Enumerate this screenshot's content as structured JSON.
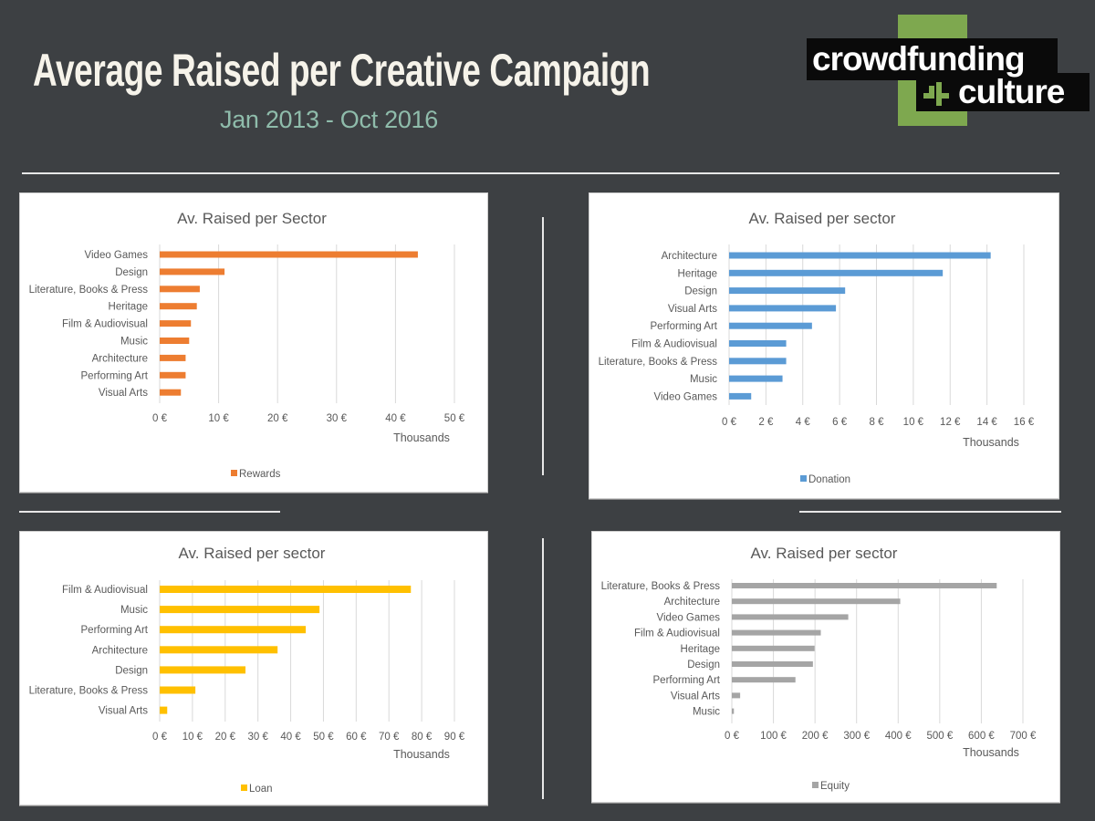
{
  "header": {
    "title": "Average Raised per Creative Campaign",
    "subtitle": "Jan 2013 - Oct 2016"
  },
  "logo": {
    "line1": "crowdfunding",
    "line2": "culture",
    "brand_green": "#7ea84f"
  },
  "chart_data": [
    {
      "type": "bar",
      "orientation": "horizontal",
      "title": "Av. Raised per Sector",
      "xlabel": "Thousands",
      "ylabel": "",
      "legend": "Rewards",
      "legend_position": "bottom",
      "color": "#ed7d31",
      "grid": true,
      "xlim": [
        0,
        50
      ],
      "x_ticks": [
        "0 €",
        "10 €",
        "20 €",
        "30 €",
        "40 €",
        "50 €"
      ],
      "categories": [
        "Video Games",
        "Design",
        "Literature, Books & Press",
        "Heritage",
        "Film & Audiovisual",
        "Music",
        "Architecture",
        "Performing Art",
        "Visual Arts"
      ],
      "values": [
        43.8,
        11.0,
        6.8,
        6.3,
        5.3,
        5.0,
        4.4,
        4.4,
        3.6
      ]
    },
    {
      "type": "bar",
      "orientation": "horizontal",
      "title": "Av. Raised per sector",
      "xlabel": "Thousands",
      "ylabel": "",
      "legend": "Donation",
      "legend_position": "bottom",
      "color": "#5b9bd5",
      "grid": true,
      "xlim": [
        0,
        16
      ],
      "x_ticks": [
        "0 €",
        "2 €",
        "4 €",
        "6 €",
        "8 €",
        "10 €",
        "12 €",
        "14 €",
        "16 €"
      ],
      "categories": [
        "Architecture",
        "Heritage",
        "Design",
        "Visual Arts",
        "Performing Art",
        "Film & Audiovisual",
        "Literature, Books & Press",
        "Music",
        "Video Games"
      ],
      "values": [
        14.2,
        11.6,
        6.3,
        5.8,
        4.5,
        3.1,
        3.1,
        2.9,
        1.2
      ]
    },
    {
      "type": "bar",
      "orientation": "horizontal",
      "title": "Av. Raised per sector",
      "xlabel": "Thousands",
      "ylabel": "",
      "legend": "Loan",
      "legend_position": "bottom",
      "color": "#ffc000",
      "grid": true,
      "xlim": [
        0,
        90
      ],
      "x_ticks": [
        "0 €",
        "10 €",
        "20 €",
        "30 €",
        "40 €",
        "50 €",
        "60 €",
        "70 €",
        "80 €",
        "90 €"
      ],
      "categories": [
        "Film & Audiovisual",
        "Music",
        "Performing Art",
        "Architecture",
        "Design",
        "Literature, Books & Press",
        "Visual Arts"
      ],
      "values": [
        76.7,
        48.8,
        44.6,
        36.0,
        26.2,
        10.9,
        2.3
      ]
    },
    {
      "type": "bar",
      "orientation": "horizontal",
      "title": "Av. Raised per sector",
      "xlabel": "Thousands",
      "ylabel": "",
      "legend": "Equity",
      "legend_position": "bottom",
      "color": "#a5a5a5",
      "grid": true,
      "xlim": [
        0,
        700
      ],
      "x_ticks": [
        "0 €",
        "100 €",
        "200 €",
        "300 €",
        "400 €",
        "500 €",
        "600 €",
        "700 €"
      ],
      "categories": [
        "Literature, Books & Press",
        "Architecture",
        "Video Games",
        "Film & Audiovisual",
        "Heritage",
        "Design",
        "Performing Art",
        "Visual Arts",
        "Music"
      ],
      "values": [
        637,
        405,
        280,
        214,
        199,
        195,
        153,
        20,
        5
      ]
    }
  ]
}
